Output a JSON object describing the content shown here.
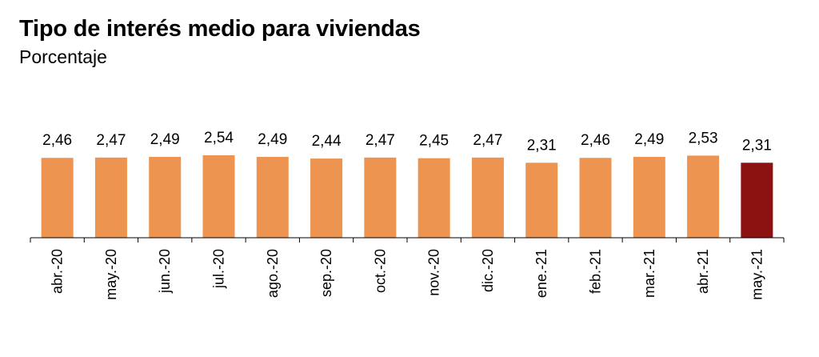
{
  "title": "Tipo de interés medio para viviendas",
  "subtitle": "Porcentaje",
  "colors": {
    "bar": "#ED9450",
    "highlight": "#8C1111",
    "axis": "#000000"
  },
  "chart_data": {
    "type": "bar",
    "title": "Tipo de interés medio para viviendas",
    "subtitle": "Porcentaje",
    "xlabel": "",
    "ylabel": "",
    "categories": [
      "abr.-20",
      "may.-20",
      "jun.-20",
      "jul.-20",
      "ago.-20",
      "sep.-20",
      "oct.-20",
      "nov.-20",
      "dic.-20",
      "ene.-21",
      "feb.-21",
      "mar.-21",
      "abr.-21",
      "may.-21"
    ],
    "values": [
      2.46,
      2.47,
      2.49,
      2.54,
      2.49,
      2.44,
      2.47,
      2.45,
      2.47,
      2.31,
      2.46,
      2.49,
      2.53,
      2.31
    ],
    "value_labels": [
      "2,46",
      "2,47",
      "2,49",
      "2,54",
      "2,49",
      "2,44",
      "2,47",
      "2,45",
      "2,47",
      "2,31",
      "2,46",
      "2,49",
      "2,53",
      "2,31"
    ],
    "highlight_index": 13,
    "ylim": [
      0,
      2.54
    ],
    "grid": false,
    "legend": "none"
  }
}
